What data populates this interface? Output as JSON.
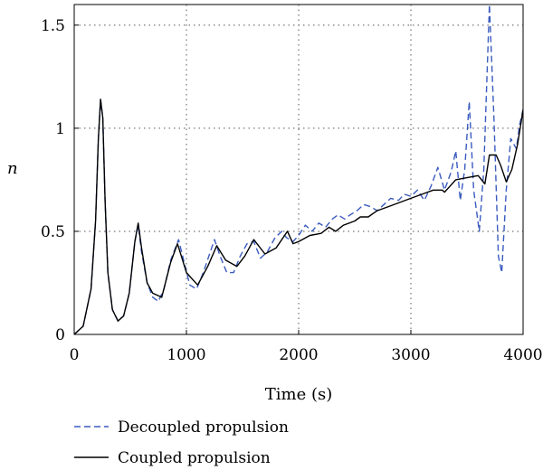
{
  "chart_data": {
    "type": "line",
    "title": "",
    "xlabel": "Time (s)",
    "ylabel": "n",
    "xlim": [
      0,
      4000
    ],
    "ylim": [
      0,
      1.6
    ],
    "xticks": [
      0,
      1000,
      2000,
      3000,
      4000
    ],
    "xtick_labels": [
      "0",
      "1000",
      "2000",
      "3000",
      "4000"
    ],
    "yticks": [
      0,
      0.5,
      1,
      1.5
    ],
    "ytick_labels": [
      "0",
      "0.5",
      "1",
      "1.5"
    ],
    "grid": "dotted",
    "legend_position": "bottom-left, below plot",
    "series": [
      {
        "name": "Decoupled propulsion",
        "color": "#3a5bbf",
        "style": "dashed",
        "points": [
          [
            0,
            0
          ],
          [
            80,
            0.04
          ],
          [
            150,
            0.22
          ],
          [
            190,
            0.55
          ],
          [
            215,
            0.95
          ],
          [
            235,
            1.14
          ],
          [
            255,
            1.05
          ],
          [
            275,
            0.65
          ],
          [
            300,
            0.3
          ],
          [
            340,
            0.12
          ],
          [
            390,
            0.065
          ],
          [
            440,
            0.09
          ],
          [
            490,
            0.2
          ],
          [
            540,
            0.45
          ],
          [
            570,
            0.53
          ],
          [
            600,
            0.4
          ],
          [
            650,
            0.25
          ],
          [
            700,
            0.18
          ],
          [
            750,
            0.16
          ],
          [
            800,
            0.22
          ],
          [
            860,
            0.36
          ],
          [
            930,
            0.46
          ],
          [
            980,
            0.35
          ],
          [
            1030,
            0.24
          ],
          [
            1090,
            0.22
          ],
          [
            1150,
            0.3
          ],
          [
            1200,
            0.38
          ],
          [
            1250,
            0.46
          ],
          [
            1300,
            0.38
          ],
          [
            1360,
            0.3
          ],
          [
            1420,
            0.3
          ],
          [
            1480,
            0.38
          ],
          [
            1540,
            0.44
          ],
          [
            1600,
            0.45
          ],
          [
            1660,
            0.37
          ],
          [
            1720,
            0.4
          ],
          [
            1790,
            0.47
          ],
          [
            1850,
            0.5
          ],
          [
            1890,
            0.47
          ],
          [
            1950,
            0.45
          ],
          [
            2000,
            0.48
          ],
          [
            2060,
            0.53
          ],
          [
            2120,
            0.5
          ],
          [
            2180,
            0.54
          ],
          [
            2240,
            0.52
          ],
          [
            2300,
            0.56
          ],
          [
            2350,
            0.58
          ],
          [
            2410,
            0.56
          ],
          [
            2460,
            0.58
          ],
          [
            2520,
            0.6
          ],
          [
            2580,
            0.63
          ],
          [
            2640,
            0.62
          ],
          [
            2700,
            0.6
          ],
          [
            2760,
            0.63
          ],
          [
            2820,
            0.66
          ],
          [
            2890,
            0.65
          ],
          [
            2940,
            0.68
          ],
          [
            3000,
            0.67
          ],
          [
            3060,
            0.7
          ],
          [
            3120,
            0.65
          ],
          [
            3180,
            0.72
          ],
          [
            3240,
            0.81
          ],
          [
            3300,
            0.7
          ],
          [
            3360,
            0.79
          ],
          [
            3400,
            0.89
          ],
          [
            3440,
            0.65
          ],
          [
            3480,
            0.8
          ],
          [
            3520,
            1.13
          ],
          [
            3560,
            0.7
          ],
          [
            3610,
            0.5
          ],
          [
            3650,
            0.8
          ],
          [
            3700,
            1.6
          ],
          [
            3740,
            1.05
          ],
          [
            3780,
            0.38
          ],
          [
            3810,
            0.3
          ],
          [
            3850,
            0.7
          ],
          [
            3890,
            0.95
          ],
          [
            3940,
            0.9
          ],
          [
            3970,
            1.02
          ],
          [
            4000,
            1.09
          ]
        ]
      },
      {
        "name": "Coupled propulsion",
        "color": "#000000",
        "style": "solid",
        "points": [
          [
            0,
            0
          ],
          [
            80,
            0.04
          ],
          [
            150,
            0.22
          ],
          [
            190,
            0.55
          ],
          [
            215,
            0.95
          ],
          [
            235,
            1.14
          ],
          [
            255,
            1.05
          ],
          [
            275,
            0.65
          ],
          [
            300,
            0.3
          ],
          [
            340,
            0.12
          ],
          [
            390,
            0.065
          ],
          [
            440,
            0.09
          ],
          [
            490,
            0.2
          ],
          [
            540,
            0.45
          ],
          [
            570,
            0.54
          ],
          [
            600,
            0.42
          ],
          [
            650,
            0.25
          ],
          [
            700,
            0.2
          ],
          [
            780,
            0.18
          ],
          [
            860,
            0.35
          ],
          [
            920,
            0.44
          ],
          [
            1000,
            0.3
          ],
          [
            1100,
            0.24
          ],
          [
            1190,
            0.33
          ],
          [
            1270,
            0.43
          ],
          [
            1350,
            0.36
          ],
          [
            1450,
            0.33
          ],
          [
            1520,
            0.38
          ],
          [
            1600,
            0.46
          ],
          [
            1700,
            0.39
          ],
          [
            1800,
            0.42
          ],
          [
            1900,
            0.5
          ],
          [
            1950,
            0.44
          ],
          [
            2000,
            0.45
          ],
          [
            2100,
            0.48
          ],
          [
            2200,
            0.49
          ],
          [
            2270,
            0.52
          ],
          [
            2330,
            0.5
          ],
          [
            2400,
            0.53
          ],
          [
            2500,
            0.55
          ],
          [
            2550,
            0.57
          ],
          [
            2620,
            0.57
          ],
          [
            2700,
            0.6
          ],
          [
            2800,
            0.62
          ],
          [
            2900,
            0.64
          ],
          [
            3000,
            0.66
          ],
          [
            3100,
            0.68
          ],
          [
            3200,
            0.7
          ],
          [
            3280,
            0.7
          ],
          [
            3300,
            0.69
          ],
          [
            3350,
            0.72
          ],
          [
            3400,
            0.75
          ],
          [
            3500,
            0.76
          ],
          [
            3600,
            0.77
          ],
          [
            3660,
            0.73
          ],
          [
            3700,
            0.87
          ],
          [
            3760,
            0.87
          ],
          [
            3800,
            0.82
          ],
          [
            3850,
            0.74
          ],
          [
            3900,
            0.8
          ],
          [
            3950,
            0.92
          ],
          [
            3980,
            1.02
          ],
          [
            4000,
            1.09
          ]
        ]
      }
    ]
  }
}
